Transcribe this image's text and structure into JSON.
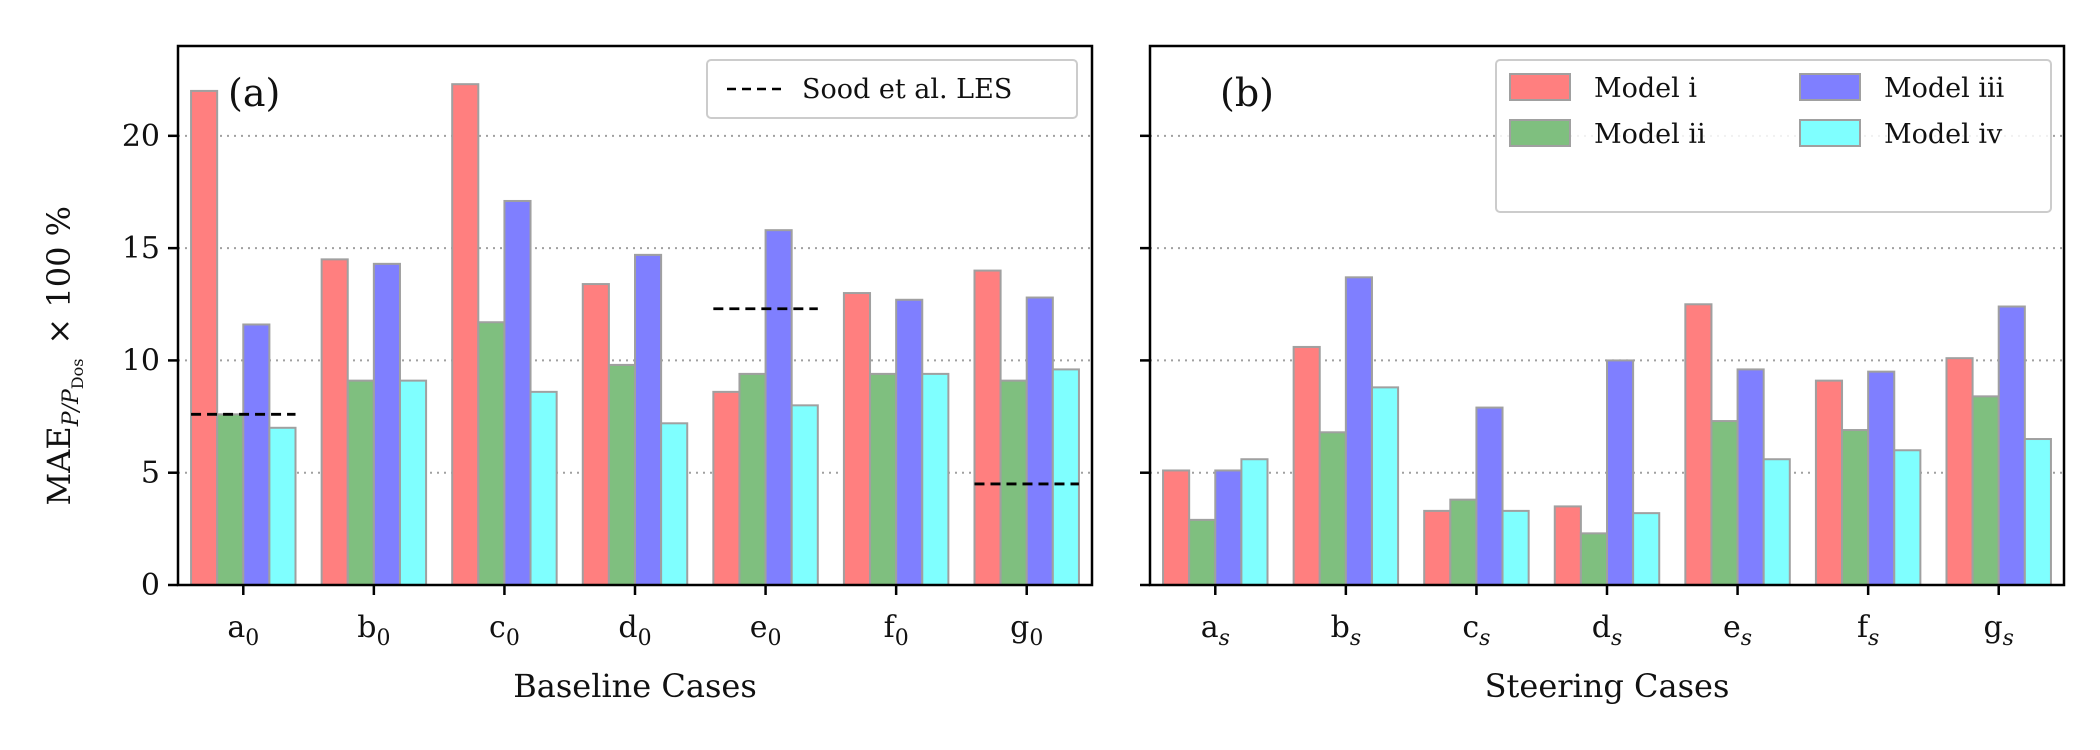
{
  "chart_data": [
    {
      "type": "bar",
      "panel_label": "(a)",
      "xlabel": "Baseline Cases",
      "ylabel": "MAE",
      "ylabel_sub": "P/P",
      "ylabel_subsub": "Dos",
      "ylabel_suffix": "× 100 %",
      "ylim": [
        0,
        24
      ],
      "yticks": [
        0,
        5,
        10,
        15,
        20
      ],
      "grid": "horizontal-dotted",
      "categories": [
        {
          "base": "a",
          "sub": "0"
        },
        {
          "base": "b",
          "sub": "0"
        },
        {
          "base": "c",
          "sub": "0"
        },
        {
          "base": "d",
          "sub": "0"
        },
        {
          "base": "e",
          "sub": "0"
        },
        {
          "base": "f",
          "sub": "0"
        },
        {
          "base": "g",
          "sub": "0"
        }
      ],
      "series": [
        {
          "name": "Model i",
          "color": "#ff7f7f",
          "values": [
            22.0,
            14.5,
            22.3,
            13.4,
            8.6,
            13.0,
            14.0
          ]
        },
        {
          "name": "Model ii",
          "color": "#7fbf7f",
          "values": [
            7.6,
            9.1,
            11.7,
            9.8,
            9.4,
            9.4,
            9.1
          ]
        },
        {
          "name": "Model iii",
          "color": "#7f7fff",
          "values": [
            11.6,
            14.3,
            17.1,
            14.7,
            15.8,
            12.7,
            12.8
          ]
        },
        {
          "name": "Model iv",
          "color": "#7fffff",
          "values": [
            7.0,
            9.1,
            8.6,
            7.2,
            8.0,
            9.4,
            9.6
          ]
        }
      ],
      "reference": {
        "name": "Sood et al. LES",
        "values": [
          {
            "category_index": 0,
            "value": 7.6
          },
          {
            "category_index": 4,
            "value": 12.3
          },
          {
            "category_index": 6,
            "value": 4.5
          }
        ]
      },
      "legend_position": "top-right"
    },
    {
      "type": "bar",
      "panel_label": "(b)",
      "xlabel": "Steering Cases",
      "ylim": [
        0,
        24
      ],
      "yticks": [
        0,
        5,
        10,
        15,
        20
      ],
      "grid": "horizontal-dotted",
      "categories": [
        {
          "base": "a",
          "sub": "s"
        },
        {
          "base": "b",
          "sub": "s"
        },
        {
          "base": "c",
          "sub": "s"
        },
        {
          "base": "d",
          "sub": "s"
        },
        {
          "base": "e",
          "sub": "s"
        },
        {
          "base": "f",
          "sub": "s"
        },
        {
          "base": "g",
          "sub": "s"
        }
      ],
      "series": [
        {
          "name": "Model i",
          "color": "#ff7f7f",
          "values": [
            5.1,
            10.6,
            3.3,
            3.5,
            12.5,
            9.1,
            10.1
          ]
        },
        {
          "name": "Model ii",
          "color": "#7fbf7f",
          "values": [
            2.9,
            6.8,
            3.8,
            2.3,
            7.3,
            6.9,
            8.4
          ]
        },
        {
          "name": "Model iii",
          "color": "#7f7fff",
          "values": [
            5.1,
            13.7,
            7.9,
            10.0,
            9.6,
            9.5,
            12.4
          ]
        },
        {
          "name": "Model iv",
          "color": "#7fffff",
          "values": [
            5.6,
            8.8,
            3.3,
            3.2,
            5.6,
            6.0,
            6.5
          ]
        }
      ],
      "legend_position": "top-right"
    }
  ]
}
